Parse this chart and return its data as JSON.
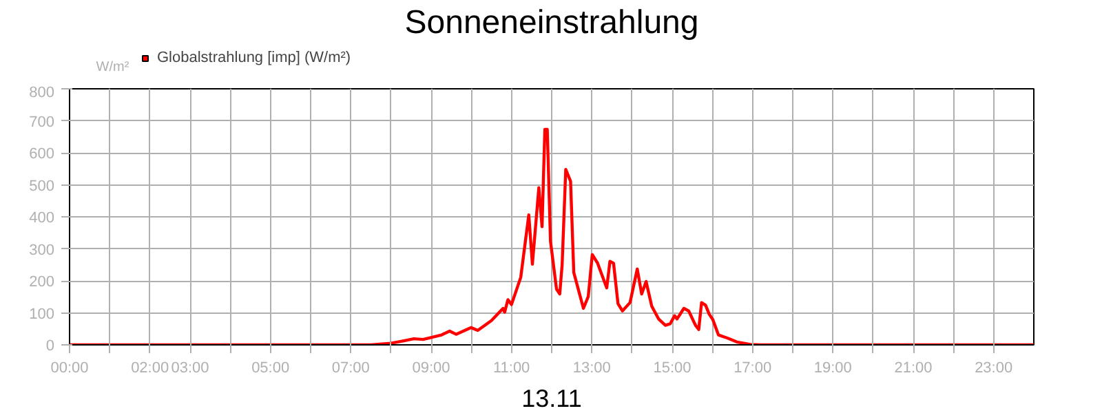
{
  "chart_data": {
    "type": "line",
    "title": "Sonneneinstrahlung",
    "xlabel": "13.11",
    "ylabel": "W/m²",
    "xlim": [
      0,
      24
    ],
    "ylim": [
      0,
      800
    ],
    "yticks": [
      0,
      100,
      200,
      300,
      400,
      500,
      600,
      700,
      800
    ],
    "xticks": [
      {
        "value": 0,
        "label": "00:00"
      },
      {
        "value": 1,
        "label": null
      },
      {
        "value": 2,
        "label": "02:00"
      },
      {
        "value": 3,
        "label": "03:00"
      },
      {
        "value": 4,
        "label": null
      },
      {
        "value": 5,
        "label": "05:00"
      },
      {
        "value": 6,
        "label": null
      },
      {
        "value": 7,
        "label": "07:00"
      },
      {
        "value": 8,
        "label": null
      },
      {
        "value": 9,
        "label": "09:00"
      },
      {
        "value": 10,
        "label": null
      },
      {
        "value": 11,
        "label": "11:00"
      },
      {
        "value": 12,
        "label": null
      },
      {
        "value": 13,
        "label": "13:00"
      },
      {
        "value": 14,
        "label": null
      },
      {
        "value": 15,
        "label": "15:00"
      },
      {
        "value": 16,
        "label": null
      },
      {
        "value": 17,
        "label": "17:00"
      },
      {
        "value": 18,
        "label": null
      },
      {
        "value": 19,
        "label": "19:00"
      },
      {
        "value": 20,
        "label": null
      },
      {
        "value": 21,
        "label": "21:00"
      },
      {
        "value": 22,
        "label": null
      },
      {
        "value": 23,
        "label": "23:00"
      }
    ],
    "grid": true,
    "legend": "top left",
    "marker": "none",
    "line_style": "solid",
    "series": [
      {
        "name": "Globalstrahlung [imp] (W/m²)",
        "color": "#ff0000",
        "x": [
          0,
          7.5,
          8.0,
          8.3,
          8.57,
          8.8,
          9.26,
          9.46,
          9.62,
          9.99,
          10.16,
          10.5,
          10.79,
          10.83,
          10.91,
          11.0,
          11.23,
          11.43,
          11.52,
          11.68,
          11.76,
          11.83,
          11.89,
          11.97,
          12.12,
          12.2,
          12.26,
          12.35,
          12.47,
          12.55,
          12.79,
          12.91,
          13.01,
          13.14,
          13.37,
          13.45,
          13.54,
          13.65,
          13.76,
          13.95,
          14.13,
          14.24,
          14.35,
          14.49,
          14.66,
          14.83,
          14.95,
          15.06,
          15.12,
          15.29,
          15.41,
          15.58,
          15.66,
          15.73,
          15.83,
          15.92,
          16.01,
          16.15,
          16.38,
          16.61,
          16.95,
          17.2,
          24
        ],
        "values": [
          0,
          0,
          5,
          12,
          19,
          17,
          31,
          43,
          33,
          54,
          45,
          76,
          114,
          102,
          141,
          126,
          211,
          406,
          252,
          491,
          369,
          673,
          673,
          324,
          174,
          159,
          250,
          548,
          511,
          226,
          114,
          151,
          282,
          256,
          178,
          261,
          255,
          129,
          106,
          132,
          237,
          159,
          198,
          121,
          81,
          61,
          66,
          91,
          81,
          114,
          106,
          61,
          48,
          132,
          124,
          96,
          79,
          31,
          21,
          9,
          1,
          0,
          0
        ]
      }
    ]
  }
}
